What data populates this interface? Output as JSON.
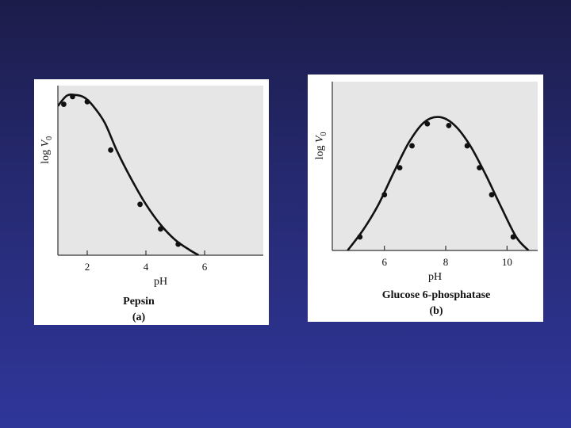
{
  "slide": {
    "background_top": "#1c1c4a",
    "background_bottom": "#2f369a"
  },
  "chart_data": [
    {
      "type": "line",
      "name": "Pepsin",
      "panel_label": "(a)",
      "xlabel": "pH",
      "ylabel": "log V0",
      "xlim": [
        1,
        8
      ],
      "ylim": [
        0,
        1
      ],
      "xticks": [
        2,
        4,
        6
      ],
      "plot_background": "#e6e6e6",
      "curve": {
        "x": [
          1.0,
          1.3,
          1.6,
          1.9,
          2.2,
          2.6,
          3.0,
          3.5,
          4.0,
          4.5,
          5.0,
          5.5,
          5.8
        ],
        "y": [
          0.88,
          0.94,
          0.945,
          0.93,
          0.88,
          0.78,
          0.62,
          0.45,
          0.3,
          0.18,
          0.09,
          0.03,
          0.0
        ]
      },
      "points": {
        "x": [
          1.2,
          1.5,
          2.0,
          2.8,
          3.8,
          4.5,
          5.1
        ],
        "y": [
          0.89,
          0.935,
          0.905,
          0.62,
          0.3,
          0.155,
          0.065
        ]
      }
    },
    {
      "type": "line",
      "name": "Glucose 6-phosphatase",
      "panel_label": "(b)",
      "xlabel": "pH",
      "ylabel": "log V0",
      "xlim": [
        4.3,
        11
      ],
      "ylim": [
        0,
        1
      ],
      "xticks": [
        6,
        8,
        10
      ],
      "plot_background": "#e6e6e6",
      "curve": {
        "x": [
          4.8,
          5.3,
          5.8,
          6.3,
          6.8,
          7.3,
          7.8,
          8.3,
          8.8,
          9.3,
          9.8,
          10.3,
          10.7
        ],
        "y": [
          0.0,
          0.12,
          0.27,
          0.46,
          0.64,
          0.76,
          0.79,
          0.74,
          0.62,
          0.45,
          0.26,
          0.08,
          0.0
        ]
      },
      "points": {
        "x": [
          5.2,
          6.0,
          6.5,
          6.9,
          7.4,
          8.1,
          8.7,
          9.1,
          9.5,
          10.2
        ],
        "y": [
          0.08,
          0.33,
          0.49,
          0.62,
          0.75,
          0.74,
          0.62,
          0.49,
          0.33,
          0.08
        ]
      }
    }
  ]
}
